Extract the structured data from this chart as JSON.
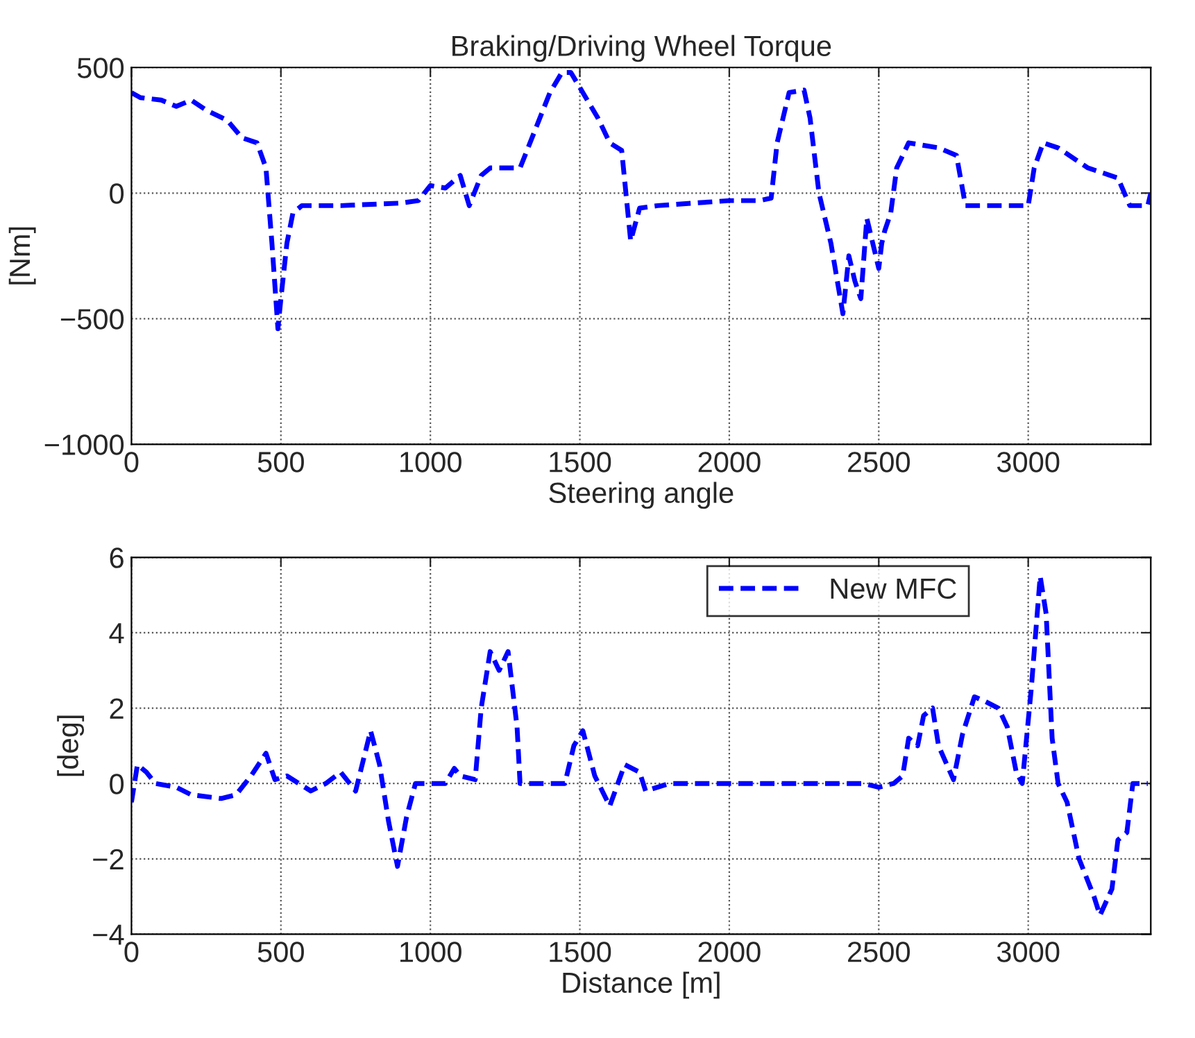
{
  "chart_data": [
    {
      "type": "line",
      "title": "Braking/Driving Wheel Torque",
      "xlabel": "Steering angle",
      "ylabel": "[Nm]",
      "xlim": [
        0,
        3410
      ],
      "xticks": [
        0,
        500,
        1000,
        1500,
        2000,
        2500,
        3000
      ],
      "ylim": [
        -1000,
        500
      ],
      "yticks": [
        {
          "value": -1000,
          "label": "−1000"
        },
        {
          "value": -500,
          "label": "−500"
        },
        0,
        500
      ],
      "grid": true,
      "legend": false,
      "line_style": "dashed",
      "marker": "none",
      "series": [
        {
          "color": "#0000ff",
          "x": [
            0,
            30,
            100,
            150,
            200,
            250,
            320,
            370,
            420,
            450,
            470,
            490,
            500,
            520,
            540,
            570,
            700,
            900,
            960,
            1000,
            1050,
            1100,
            1130,
            1170,
            1200,
            1300,
            1350,
            1400,
            1440,
            1470,
            1500,
            1560,
            1600,
            1640,
            1670,
            1700,
            1760,
            2000,
            2100,
            2140,
            2160,
            2200,
            2250,
            2270,
            2300,
            2340,
            2380,
            2400,
            2420,
            2440,
            2460,
            2480,
            2500,
            2510,
            2520,
            2540,
            2560,
            2600,
            2700,
            2760,
            2790,
            2820,
            2950,
            3000,
            3020,
            3050,
            3100,
            3200,
            3300,
            3340,
            3400,
            3410
          ],
          "values": [
            400,
            380,
            370,
            345,
            370,
            330,
            290,
            220,
            200,
            100,
            -200,
            -540,
            -420,
            -200,
            -80,
            -50,
            -50,
            -40,
            -30,
            30,
            20,
            70,
            -50,
            70,
            100,
            100,
            250,
            400,
            480,
            480,
            420,
            300,
            200,
            170,
            -190,
            -60,
            -50,
            -30,
            -30,
            -20,
            200,
            400,
            410,
            300,
            0,
            -200,
            -480,
            -250,
            -350,
            -420,
            -100,
            -200,
            -300,
            -200,
            -150,
            -80,
            100,
            200,
            180,
            150,
            -50,
            -50,
            -50,
            -50,
            100,
            200,
            180,
            100,
            60,
            -50,
            -50,
            0
          ]
        }
      ]
    },
    {
      "type": "line",
      "xlabel": "Distance [m]",
      "ylabel": "[deg]",
      "xlim": [
        0,
        3410
      ],
      "xticks": [
        0,
        500,
        1000,
        1500,
        2000,
        2500,
        3000
      ],
      "ylim": [
        -4,
        6
      ],
      "yticks": [
        {
          "value": -4,
          "label": "−4"
        },
        {
          "value": -2,
          "label": "−2"
        },
        0,
        2,
        4,
        6
      ],
      "grid": true,
      "legend": "top right",
      "line_style": "dashed",
      "marker": "none",
      "series": [
        {
          "name": "New MFC",
          "color": "#0000ff",
          "x": [
            0,
            20,
            50,
            80,
            150,
            200,
            300,
            350,
            400,
            450,
            480,
            520,
            600,
            650,
            700,
            750,
            800,
            830,
            860,
            890,
            920,
            950,
            1050,
            1080,
            1100,
            1150,
            1170,
            1200,
            1230,
            1260,
            1290,
            1300,
            1450,
            1480,
            1510,
            1550,
            1600,
            1650,
            1700,
            1720,
            1800,
            2450,
            2500,
            2550,
            2580,
            2600,
            2630,
            2650,
            2680,
            2700,
            2750,
            2780,
            2820,
            2850,
            2900,
            2930,
            2960,
            2980,
            3010,
            3040,
            3060,
            3080,
            3100,
            3130,
            3170,
            3220,
            3240,
            3280,
            3300,
            3330,
            3350,
            3400
          ],
          "values": [
            -0.5,
            0.5,
            0.3,
            0,
            -0.1,
            -0.3,
            -0.4,
            -0.3,
            0.2,
            0.8,
            0.1,
            0.2,
            -0.2,
            0,
            0.3,
            -0.2,
            1.4,
            0.5,
            -1,
            -2.2,
            -0.9,
            0,
            0,
            0.4,
            0.2,
            0.1,
            2,
            3.5,
            3,
            3.5,
            1.5,
            0,
            0,
            1,
            1.4,
            0.2,
            -0.6,
            0.5,
            0.3,
            -0.2,
            0,
            0,
            -0.1,
            0,
            0.2,
            1.2,
            1,
            1.8,
            2,
            1,
            0.1,
            1.3,
            2.3,
            2.2,
            2,
            1.5,
            0.3,
            0,
            2.5,
            5.5,
            4.5,
            1.2,
            0,
            -0.5,
            -2,
            -3,
            -3.5,
            -2.8,
            -1.5,
            -1.3,
            0,
            0
          ]
        }
      ]
    }
  ]
}
